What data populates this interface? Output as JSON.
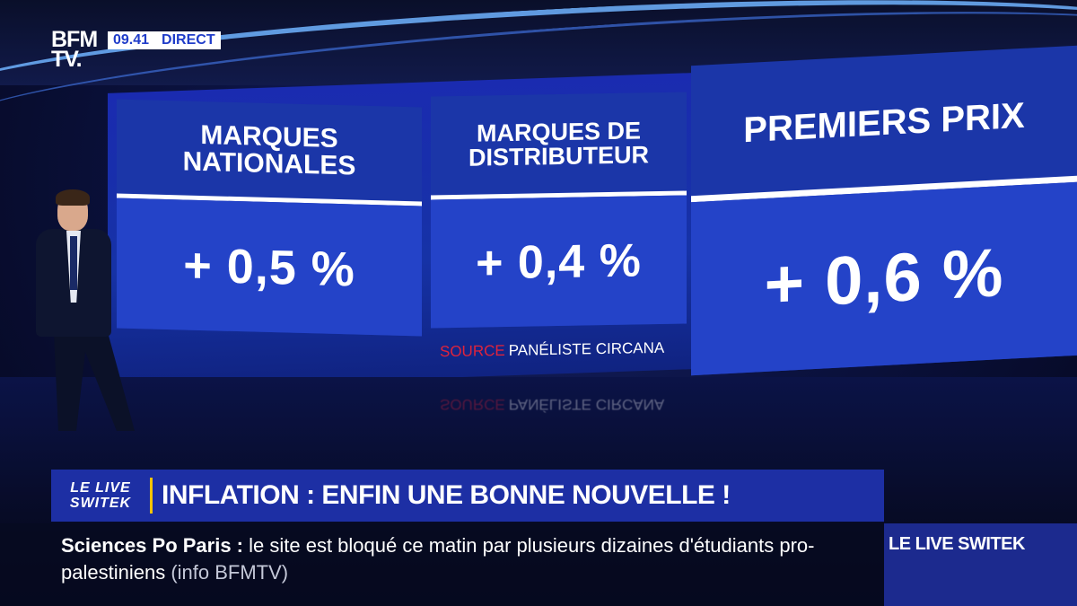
{
  "channel": {
    "logo_line1": "BFM",
    "logo_line2": "TV.",
    "time": "09.41",
    "live_label": "DIRECT"
  },
  "panels": [
    {
      "title": "MARQUES NATIONALES",
      "value": "+ 0,5 %"
    },
    {
      "title": "MARQUES DE DISTRIBUTEUR",
      "value": "+ 0,4 %"
    },
    {
      "title": "PREMIERS PRIX",
      "value": "+ 0,6 %"
    }
  ],
  "source": {
    "label": "SOURCE",
    "text": "PANÉLISTE CIRCANA"
  },
  "banner": {
    "show_line1": "LE LIVE",
    "show_line2": "SWITEK",
    "headline": "INFLATION : ENFIN UNE BONNE NOUVELLE !"
  },
  "ticker": {
    "subject": "Sciences Po Paris  :",
    "text": "le site est bloqué ce matin par plusieurs dizaines d'étudiants pro-palestiniens",
    "info": "(info BFMTV)"
  },
  "show_box": {
    "label": "LE LIVE SWITEK"
  },
  "colors": {
    "accent_blue": "#1d2fa4",
    "panel_blue": "#2443c8",
    "source_red": "#e0233b",
    "separator_yellow": "#f5c400"
  }
}
